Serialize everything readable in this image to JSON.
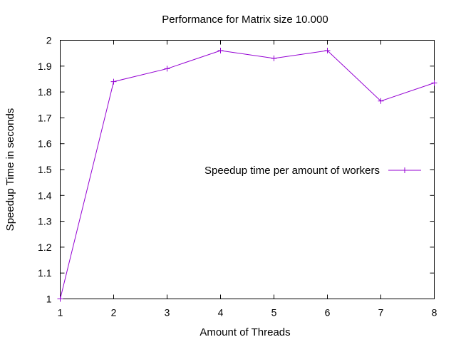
{
  "chart_data": {
    "type": "line",
    "title": "Performance for Matrix size 10.000",
    "xlabel": "Amount of Threads",
    "ylabel": "Speedup Time in seconds",
    "xlim": [
      1,
      8
    ],
    "ylim": [
      1,
      2
    ],
    "xticks": [
      "1",
      "2",
      "3",
      "4",
      "5",
      "6",
      "7",
      "8"
    ],
    "yticks": [
      "1",
      "1.1",
      "1.2",
      "1.3",
      "1.4",
      "1.5",
      "1.6",
      "1.7",
      "1.8",
      "1.9",
      "2"
    ],
    "grid": false,
    "legend_position": "right",
    "series": [
      {
        "name": "Speedup time per amount of workers",
        "color": "#9400d3",
        "marker": "plus",
        "x": [
          1,
          2,
          3,
          4,
          5,
          6,
          7,
          8
        ],
        "y": [
          1.0,
          1.84,
          1.89,
          1.96,
          1.93,
          1.96,
          1.765,
          1.835
        ]
      }
    ]
  }
}
